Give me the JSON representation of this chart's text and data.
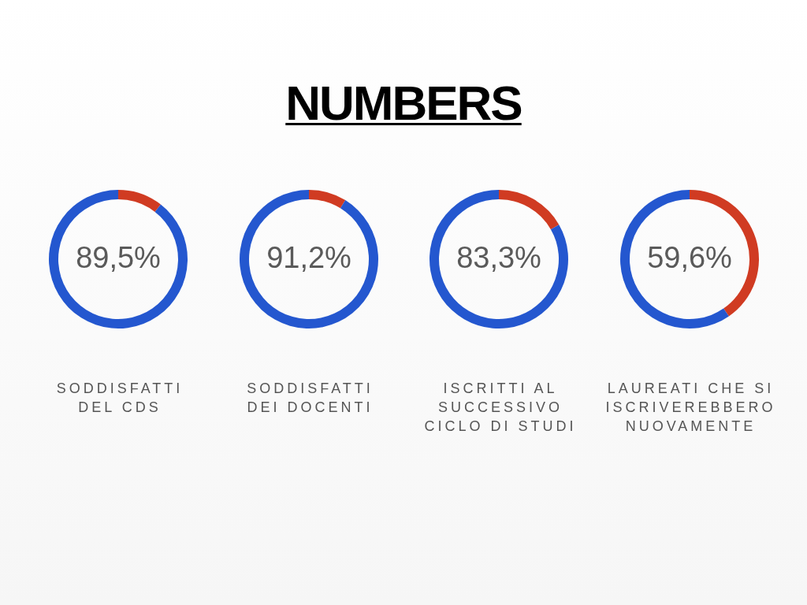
{
  "chart_data": [
    {
      "type": "other",
      "title": "NUMBERS"
    },
    {
      "type": "donut",
      "categories": [
        null,
        null
      ],
      "values": [
        10.5,
        89.5
      ],
      "colors": [
        "#d03b22",
        "#2457cf"
      ],
      "value_labels": [
        null,
        "89,5%"
      ],
      "xlabel": "SODDISFATTI\nDEL CDS"
    },
    {
      "type": "donut",
      "categories": [
        null,
        null
      ],
      "values": [
        8.8,
        91.2
      ],
      "colors": [
        "#d03b22",
        "#2457cf"
      ],
      "value_labels": [
        null,
        "91,2%"
      ],
      "xlabel": "SODDISFATTI\nDEI DOCENTI"
    },
    {
      "type": "donut",
      "categories": [
        null,
        null
      ],
      "values": [
        16.7,
        83.3
      ],
      "colors": [
        "#d03b22",
        "#2457cf"
      ],
      "value_labels": [
        null,
        "83,3%"
      ],
      "xlabel": "ISCRITTI AL\nSUCCESSIVO\nCICLO DI STUDI"
    },
    {
      "type": "donut",
      "categories": [
        null,
        null
      ],
      "values": [
        40.4,
        59.6
      ],
      "colors": [
        "#d03b22",
        "#2457cf"
      ],
      "value_labels": [
        null,
        "59,6%"
      ],
      "xlabel": "LAUREATI CHE SI\nISCRIVEREBBERO\nNUOVAMENTE"
    }
  ]
}
